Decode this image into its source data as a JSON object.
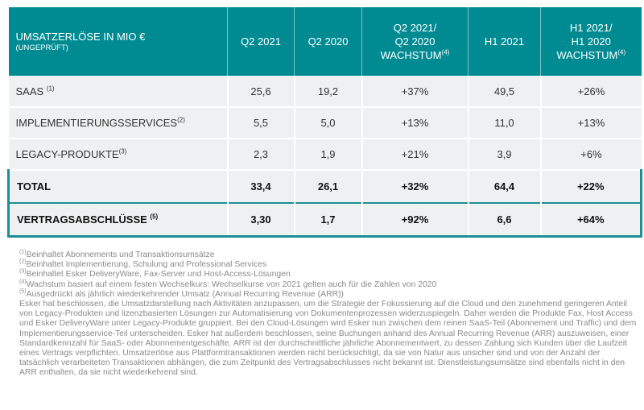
{
  "header": {
    "title": "UMSATZERLÖSE IN MIO €",
    "subtitle": "(UNGEPRÜFT)",
    "cols": [
      {
        "lines": [
          "Q2 2021"
        ]
      },
      {
        "lines": [
          "Q2 2020"
        ]
      },
      {
        "lines": [
          "Q2 2021/",
          "Q2 2020",
          "WACHSTUM"
        ],
        "sup": "(4)"
      },
      {
        "lines": [
          "H1 2021"
        ]
      },
      {
        "lines": [
          "H1 2021/",
          "H1 2020",
          "WACHSTUM"
        ],
        "sup": "(4)"
      }
    ]
  },
  "rows": [
    {
      "label": "SAAS",
      "sup": "(1)",
      "values": [
        "25,6",
        "19,2",
        "+37%",
        "49,5",
        "+26%"
      ]
    },
    {
      "label": "IMPLEMENTIERUNGSSERVICES",
      "sup": "(2)",
      "values": [
        "5,5",
        "5,0",
        "+13%",
        "11,0",
        "+13%"
      ]
    },
    {
      "label": "LEGACY-PRODUKTE",
      "sup": "(3)",
      "values": [
        "2,3",
        "1,9",
        "+21%",
        "3,9",
        "+6%"
      ]
    },
    {
      "label": "TOTAL",
      "sup": "",
      "values": [
        "33,4",
        "26,1",
        "+32%",
        "64,4",
        "+22%"
      ]
    },
    {
      "label": "VERTRAGSABSCHLÜSSE",
      "sup": "(5)",
      "values": [
        "3,30",
        "1,7",
        "+92%",
        "6,6",
        "+64%"
      ]
    }
  ],
  "footnotes": [
    {
      "sup": "(1)",
      "text": "Beinhaltet Abonnements und Transaktionsumsätze"
    },
    {
      "sup": "(2)",
      "text": "Beinhaltet Implementierung, Schulung and Professional Services"
    },
    {
      "sup": "(3)",
      "text": "Beinhaltet Esker DeliveryWare, Fax-Server und Host-Access-Lösungen"
    },
    {
      "sup": "(4)",
      "text": "Wachstum basiert auf einem festen Wechselkurs: Wechselkurse von 2021 gelten auch für die Zahlen von 2020"
    },
    {
      "sup": "(5)",
      "text": "Ausgedrückt als jährlich wiederkehrender Umsatz (Annual Recurring Revenue (ARR))"
    }
  ],
  "paragraph": "Esker hat beschlossen, die Umsatzdarstellung nach Aktivitäten anzupassen, um die Strategie der Fokussierung auf die Cloud und den zunehmend geringeren Anteil von Legacy-Produkten und lizenzbasierten Lösungen zur Automatisierung von Dokumentenprozessen widerzuspiegeln. Daher werden die Produkte Fax, Host Access und Esker DeliveryWare unter Legacy-Produkte gruppiert. Bei den Cloud-Lösungen wird Esker nun zwischen dem reinen SaaS-Teil (Abonnement und Traffic) und dem Implementierungsservice-Teil unterscheiden. Esker hat außerdem beschlossen, seine Buchungen anhand des Annual Recurring Revenue (ARR) auszuweisen, einer Standardkennzahl für SaaS- oder Abonnementgeschäfte. ARR ist der durchschnittliche jährliche Abonnementwert, zu dessen Zahlung sich Kunden über die Laufzeit eines Vertrags verpflichten. Umsatzerlöse aus Plattformtransaktionen werden nicht berücksichtigt, da sie von Natur aus unsicher sind und von der Anzahl der tatsächlich verarbeiteten Transaktionen abhängen, die zum Zeitpunkt des Vertragsabschlusses nicht bekannt ist. Dienstleistungsumsätze sind ebenfalls nicht in den ARR enthalten, da sie nicht wiederkehrend sind."
}
